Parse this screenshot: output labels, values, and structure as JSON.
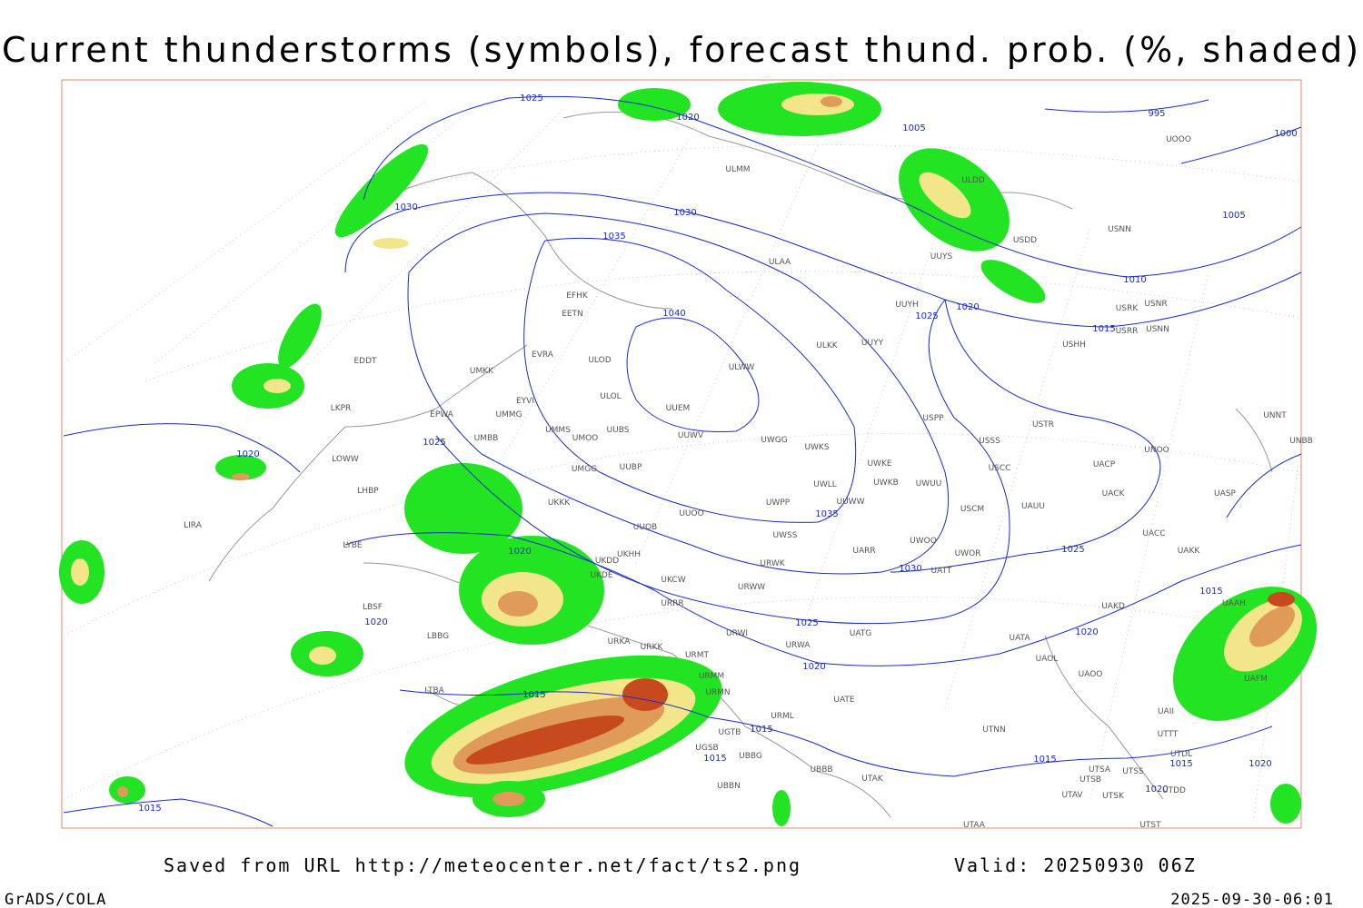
{
  "header": {
    "title": "Current thunderstorms (symbols), forecast thund. prob. (%, shaded)"
  },
  "map": {
    "isobar_labels": [
      1025,
      1020,
      1005,
      995,
      1000,
      1030,
      1030,
      1035,
      1005,
      1010,
      1020,
      1025,
      1015,
      1040,
      1025,
      1020,
      1035,
      1020,
      1030,
      1025,
      1015,
      1020,
      1025,
      1020,
      1020,
      1015,
      1015,
      1015,
      1015,
      1015,
      1020,
      1020,
      1015
    ],
    "stations": [
      "EFHK",
      "EETN",
      "EVRA",
      "ULOD",
      "UMKK",
      "EYVI",
      "EPWA",
      "UMMG",
      "LKPR",
      "EDDT",
      "UMMS",
      "UMOO",
      "UUBS",
      "UMBB",
      "LOWW",
      "LHBP",
      "UMGG",
      "UUBP",
      "UKKK",
      "UUOO",
      "UUOB",
      "LIRA",
      "LYBE",
      "UKHH",
      "UKDD",
      "UKDE",
      "UKCW",
      "LBSF",
      "URRR",
      "LBBG",
      "URWI",
      "URKA",
      "URKK",
      "URMT",
      "URMM",
      "URMN",
      "LTBA",
      "UGTB",
      "UGSB",
      "UBBG",
      "UBBB",
      "UBBN",
      "UTAK",
      "URML",
      "UATG",
      "URWA",
      "UATE",
      "UATT",
      "UARR",
      "UWOO",
      "UWOR",
      "UUWW",
      "UWLL",
      "UWPP",
      "UWSS",
      "URWK",
      "URWW",
      "UWKB",
      "UWUU",
      "UWKE",
      "UWKS",
      "UWGG",
      "UUWV",
      "UUEM",
      "ULOL",
      "ULWW",
      "ULKK",
      "UUYY",
      "UUYH",
      "ULAA",
      "ULMM",
      "UUYS",
      "ULDD",
      "USDD",
      "USNN",
      "USRK",
      "USRR",
      "USNR",
      "USNN",
      "USHH",
      "USPP",
      "USSS",
      "USTR",
      "USCC",
      "USCM",
      "UAUU",
      "UACP",
      "UACK",
      "UNOO",
      "UNNT",
      "UNBB",
      "UASP",
      "UACC",
      "UAKK",
      "UAKD",
      "UAAH",
      "UATA",
      "UAOL",
      "UAOO",
      "UTNN",
      "UTSA",
      "UTSS",
      "UTSB",
      "UTAV",
      "UTSK",
      "UTDD",
      "UTDL",
      "UTTT",
      "UAFM",
      "UAII",
      "UTST",
      "UTAA",
      "UOOO"
    ]
  },
  "footer": {
    "source": "Saved from URL http://meteocenter.net/fact/ts2.png",
    "valid": "Valid: 20250930 06Z",
    "software": "GrADS/COLA",
    "timestamp": "2025-09-30-06:01"
  }
}
